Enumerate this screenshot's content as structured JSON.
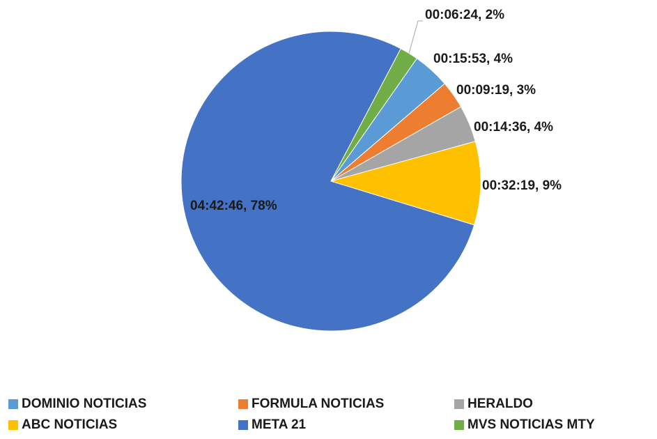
{
  "chart_data": {
    "type": "pie",
    "categories": [
      "DOMINIO NOTICIAS",
      "FORMULA NOTICIAS",
      "HERALDO",
      "ABC NOTICIAS",
      "META 21",
      "MVS NOTICIAS MTY"
    ],
    "values": [
      4,
      3,
      4,
      9,
      78,
      2
    ],
    "value_labels": [
      "00:15:53, 4%",
      "00:09:19, 3%",
      "00:14:36, 4%",
      "00:32:19, 9%",
      "04:42:46, 78%",
      "00:06:24, 2%"
    ],
    "colors": [
      "#5b9bd5",
      "#ed7d31",
      "#a5a5a5",
      "#ffc000",
      "#4472c4",
      "#70ad47"
    ],
    "legend": "bottom"
  }
}
